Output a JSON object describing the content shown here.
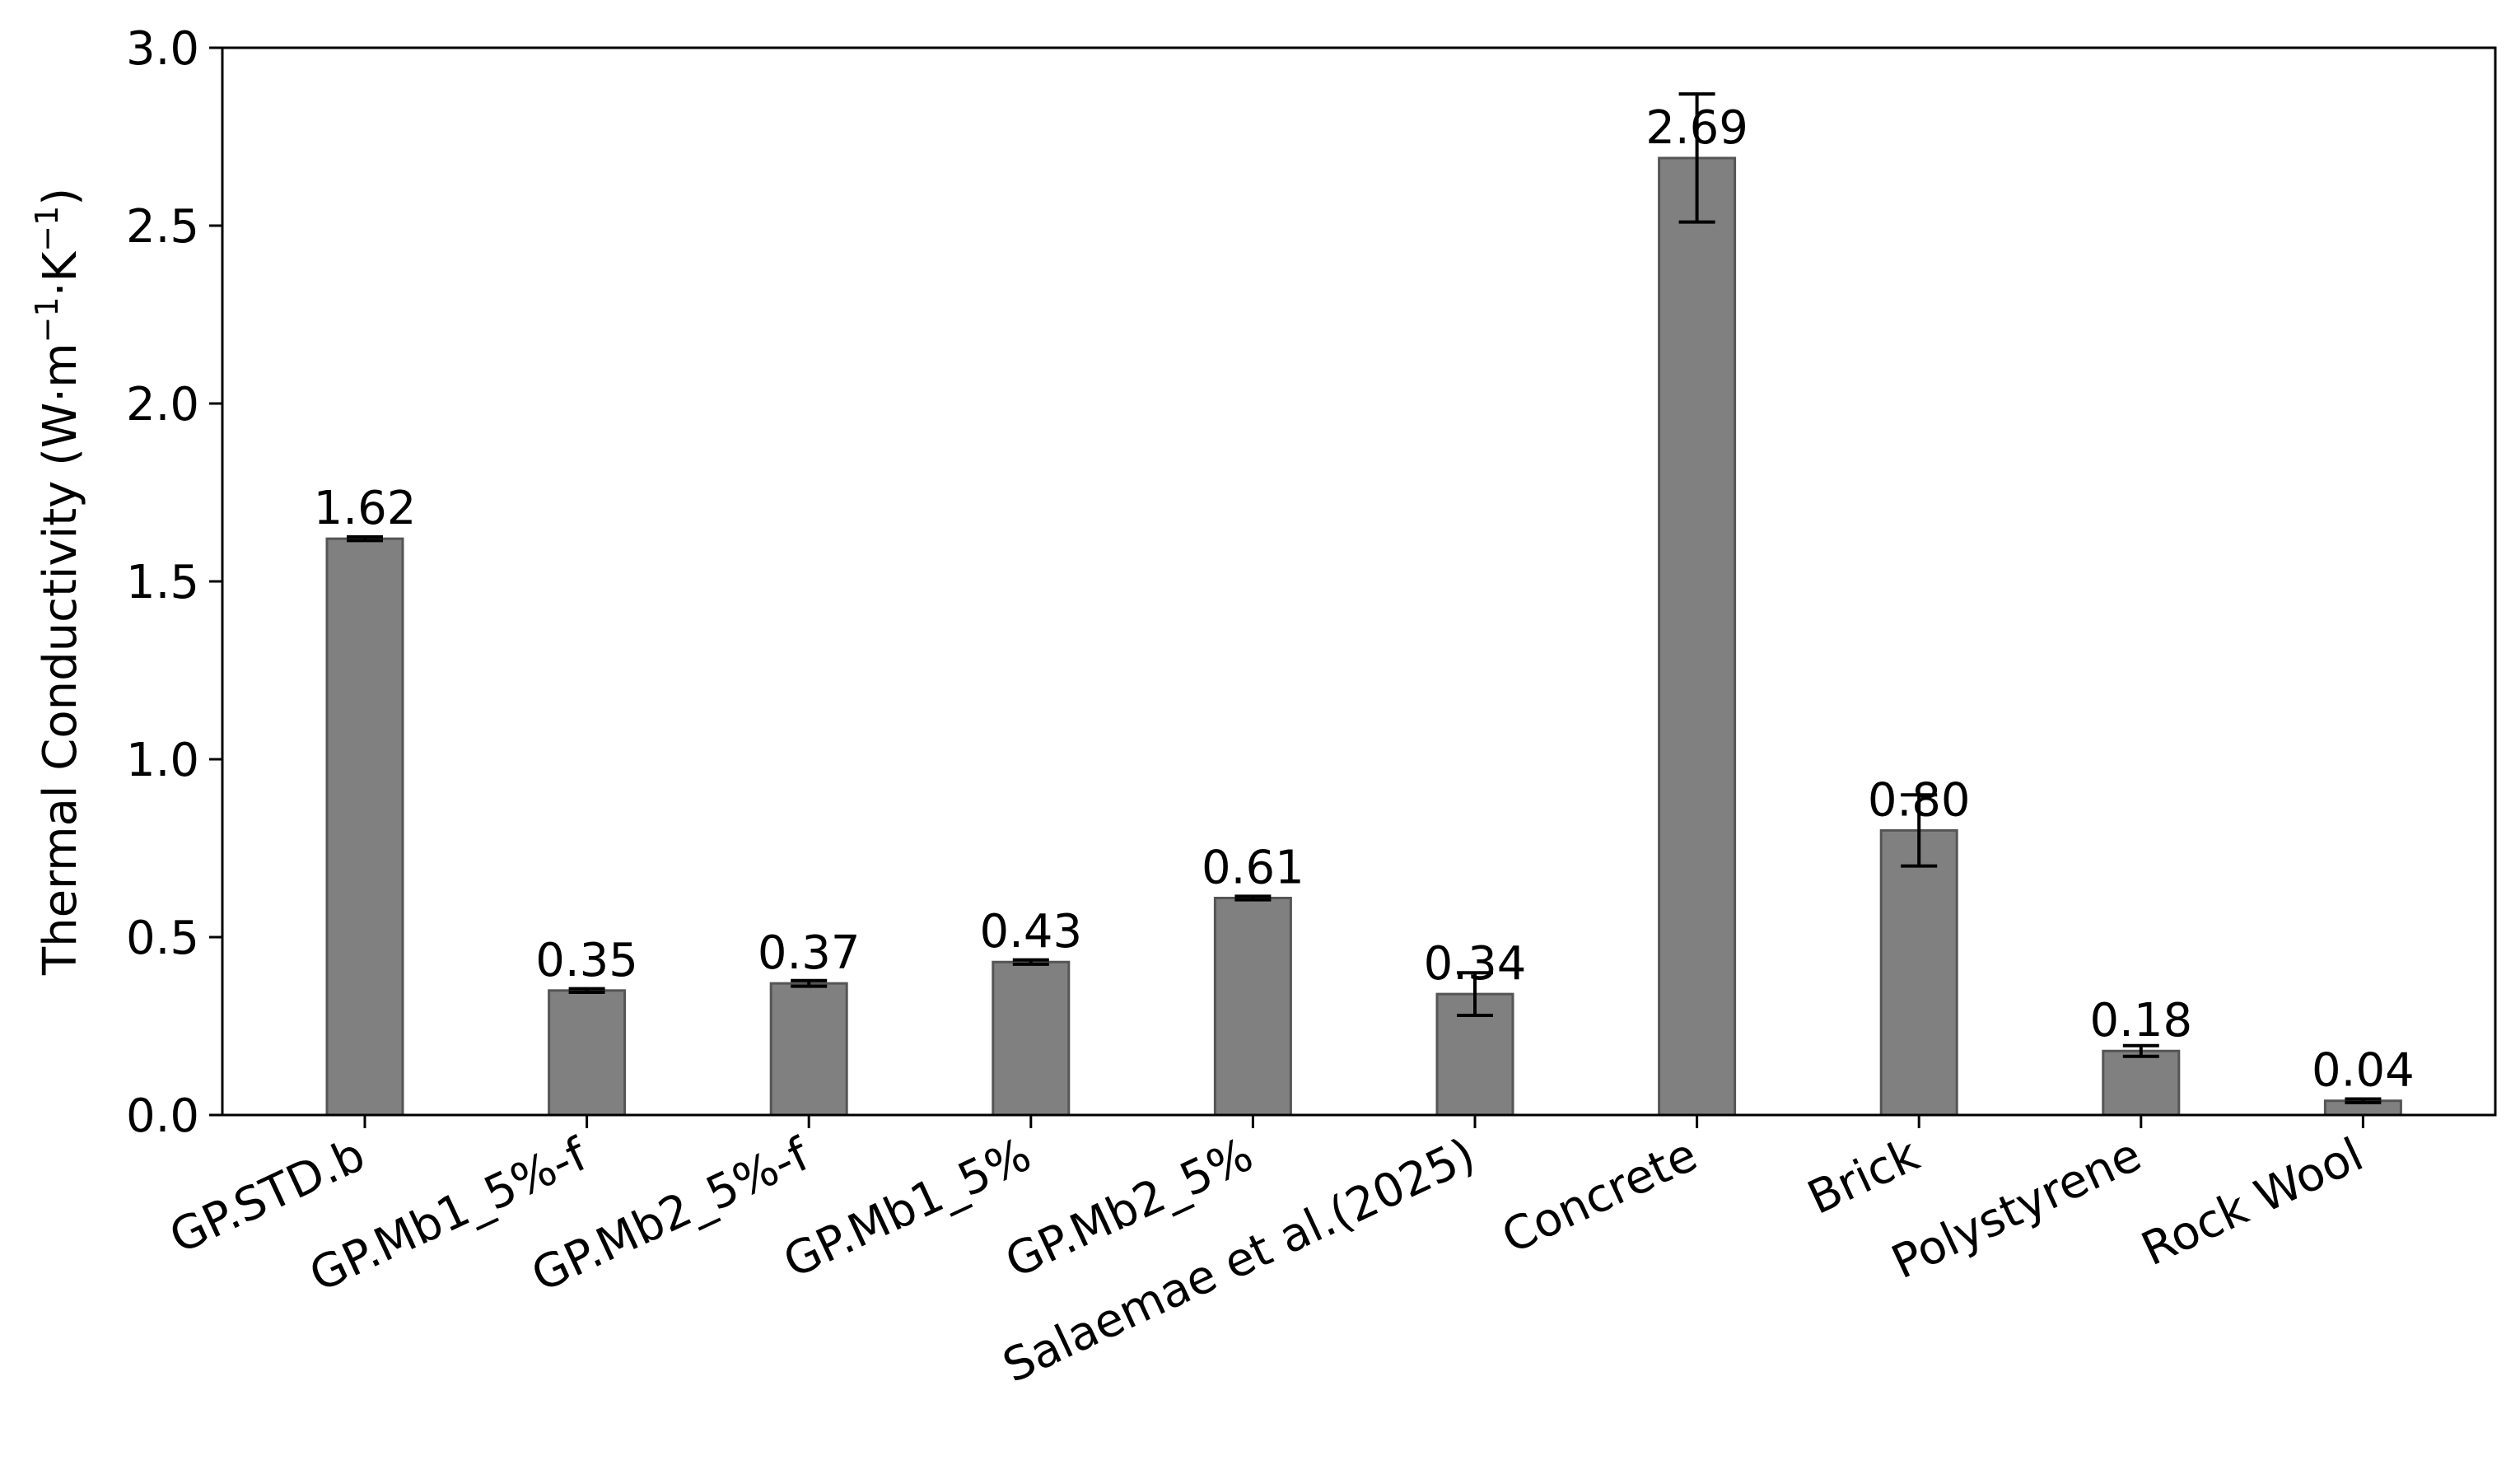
{
  "chart_data": {
    "type": "bar",
    "ylabel": "Thermal Conductivity (W·m⁻¹·K⁻¹)",
    "ylabel_parts": {
      "main": "Thermal Conductivity (W·m",
      "sup1": "−1",
      "mid": "·K",
      "sup2": "−1",
      "end": ")"
    },
    "ylim": [
      0,
      3.0
    ],
    "yticks": [
      "0.0",
      "0.5",
      "1.0",
      "1.5",
      "2.0",
      "2.5",
      "3.0"
    ],
    "grid": false,
    "bar_color": "#808080",
    "categories": [
      "GP.STD.b",
      "GP.Mb1_5%-f",
      "GP.Mb2_5%-f",
      "GP.Mb1_5%",
      "GP.Mb2_5%",
      "Salaemae et al.(2025)",
      "Concrete",
      "Brick",
      "Polystyrene",
      "Rock Wool"
    ],
    "values": [
      1.62,
      0.35,
      0.37,
      0.43,
      0.61,
      0.34,
      2.69,
      0.8,
      0.18,
      0.04
    ],
    "value_labels": [
      "1.62",
      "0.35",
      "0.37",
      "0.43",
      "0.61",
      "0.34",
      "2.69",
      "0.80",
      "0.18",
      "0.04"
    ],
    "errors": [
      0.005,
      0.005,
      0.008,
      0.006,
      0.005,
      0.06,
      0.18,
      0.1,
      0.015,
      0.005
    ]
  }
}
